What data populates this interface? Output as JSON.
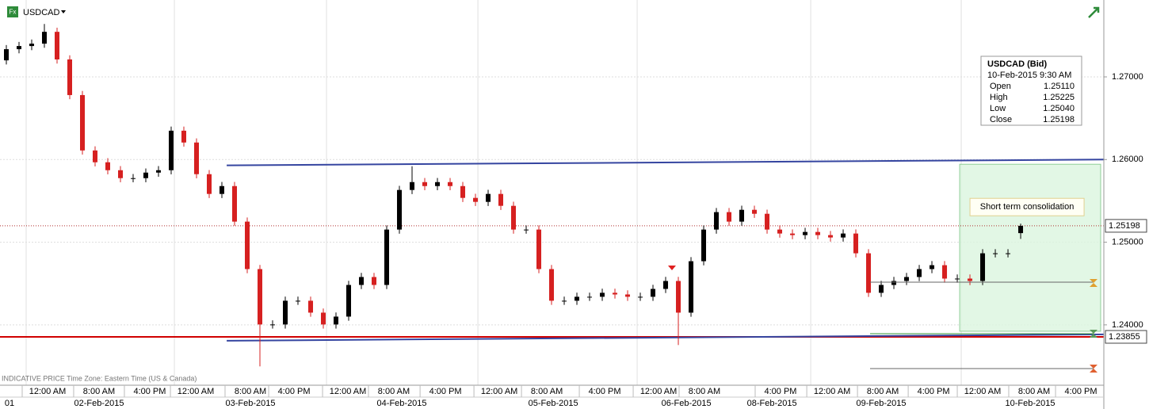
{
  "chart_data": {
    "type": "candlestick",
    "symbol": "USDCAD",
    "footer": "INDICATIVE PRICE   Time Zone: Eastern Time (US & Canada)",
    "xlim": [
      -0.5,
      86.56
    ],
    "ylim": [
      1.2327,
      1.2793
    ],
    "yticks": [
      {
        "value": 1.24,
        "label": "1.24000"
      },
      {
        "value": 1.25,
        "label": "1.25000"
      },
      {
        "value": 1.26,
        "label": "1.26000"
      },
      {
        "value": 1.27,
        "label": "1.27000"
      }
    ],
    "xticks": [
      {
        "value": 3.25,
        "label": "12:00 AM"
      },
      {
        "value": 7.31,
        "label": "8:00 AM"
      },
      {
        "value": 11.31,
        "label": "4:00 PM"
      },
      {
        "value": 14.94,
        "label": "12:00 AM"
      },
      {
        "value": 19.25,
        "label": "8:00 AM"
      },
      {
        "value": 22.69,
        "label": "4:00 PM"
      },
      {
        "value": 26.94,
        "label": "12:00 AM"
      },
      {
        "value": 30.56,
        "label": "8:00 AM"
      },
      {
        "value": 34.63,
        "label": "4:00 PM"
      },
      {
        "value": 38.88,
        "label": "12:00 AM"
      },
      {
        "value": 42.63,
        "label": "8:00 AM"
      },
      {
        "value": 47.19,
        "label": "4:00 PM"
      },
      {
        "value": 51.44,
        "label": "12:00 AM"
      },
      {
        "value": 55.06,
        "label": "8:00 AM"
      },
      {
        "value": 61.06,
        "label": "4:00 PM"
      },
      {
        "value": 65.13,
        "label": "12:00 AM"
      },
      {
        "value": 69.13,
        "label": "8:00 AM"
      },
      {
        "value": 73.13,
        "label": "4:00 PM"
      },
      {
        "value": 77.0,
        "label": "12:00 AM"
      },
      {
        "value": 81.06,
        "label": "8:00 AM"
      },
      {
        "value": 84.75,
        "label": "4:00 PM"
      }
    ],
    "date_ticks": [
      {
        "value": 0.25,
        "label": "01"
      },
      {
        "value": 7.31,
        "label": "02-Feb-2015"
      },
      {
        "value": 19.25,
        "label": "03-Feb-2015"
      },
      {
        "value": 31.19,
        "label": "04-Feb-2015"
      },
      {
        "value": 43.13,
        "label": "05-Feb-2015"
      },
      {
        "value": 53.63,
        "label": "06-Feb-2015"
      },
      {
        "value": 60.38,
        "label": "08-Feb-2015"
      },
      {
        "value": 69.0,
        "label": "09-Feb-2015"
      },
      {
        "value": 80.75,
        "label": "10-Feb-2015"
      }
    ],
    "up_color": "#000000",
    "down_color": "#d62020",
    "grid": true,
    "open": [
      1.272,
      1.27335,
      1.27373,
      1.27402,
      1.27545,
      1.27211,
      1.2678,
      1.2611,
      1.25967,
      1.25871,
      1.25775,
      1.25775,
      1.25842,
      1.25871,
      1.26349,
      1.26206,
      1.25823,
      1.25584,
      1.25679,
      1.25249,
      1.24675,
      1.24005,
      1.24005,
      1.24292,
      1.24292,
      1.24148,
      1.24005,
      1.241,
      1.24483,
      1.24579,
      1.24483,
      1.25153,
      1.25632,
      1.25727,
      1.25679,
      1.25727,
      1.25679,
      1.25536,
      1.25488,
      1.25584,
      1.2544,
      1.25153,
      1.25153,
      1.24675,
      1.24292,
      1.24292,
      1.2434,
      1.2434,
      1.24388,
      1.24368,
      1.2434,
      1.2434,
      1.24435,
      1.24531,
      1.24148,
      1.2477,
      1.25153,
      1.25364,
      1.25249,
      1.25392,
      1.25344,
      1.25153,
      1.25105,
      1.25086,
      1.25124,
      1.25086,
      1.25057,
      1.25105,
      1.24866,
      1.24388,
      1.24483,
      1.24531,
      1.24579,
      1.24675,
      1.24722,
      1.2456,
      1.2456,
      1.24531,
      1.24866,
      1.24866,
      1.2511
    ],
    "high": [
      1.27385,
      1.27423,
      1.27452,
      1.2764,
      1.27595,
      1.27261,
      1.2683,
      1.2616,
      1.26017,
      1.25921,
      1.25825,
      1.25892,
      1.25921,
      1.26399,
      1.26399,
      1.26256,
      1.25873,
      1.25729,
      1.25729,
      1.25299,
      1.24725,
      1.24055,
      1.24342,
      1.24342,
      1.24342,
      1.24198,
      1.2415,
      1.24533,
      1.24629,
      1.24629,
      1.25203,
      1.25682,
      1.25919,
      1.25777,
      1.25777,
      1.25777,
      1.25729,
      1.25586,
      1.25634,
      1.25634,
      1.2549,
      1.25203,
      1.25203,
      1.24725,
      1.24342,
      1.2439,
      1.2439,
      1.24438,
      1.24438,
      1.24418,
      1.2439,
      1.24485,
      1.24581,
      1.24581,
      1.2482,
      1.25203,
      1.25414,
      1.25414,
      1.25442,
      1.25442,
      1.25394,
      1.25203,
      1.25155,
      1.25174,
      1.25174,
      1.25136,
      1.25155,
      1.25155,
      1.24916,
      1.24533,
      1.24581,
      1.24629,
      1.24725,
      1.24772,
      1.24772,
      1.2461,
      1.2461,
      1.24916,
      1.24916,
      1.24916,
      1.25225
    ],
    "low": [
      1.2715,
      1.27285,
      1.27323,
      1.27352,
      1.27161,
      1.2673,
      1.2606,
      1.25917,
      1.25821,
      1.25725,
      1.25725,
      1.25725,
      1.25792,
      1.25821,
      1.26156,
      1.25773,
      1.25534,
      1.25534,
      1.25199,
      1.24625,
      1.23498,
      1.23955,
      1.23955,
      1.24242,
      1.24098,
      1.23955,
      1.23955,
      1.2405,
      1.24433,
      1.24433,
      1.24433,
      1.25103,
      1.25582,
      1.25629,
      1.25629,
      1.25629,
      1.25486,
      1.25438,
      1.25438,
      1.2539,
      1.25103,
      1.25103,
      1.24625,
      1.24242,
      1.24242,
      1.24242,
      1.2429,
      1.2429,
      1.24318,
      1.2429,
      1.2429,
      1.2429,
      1.24385,
      1.23756,
      1.24098,
      1.2472,
      1.25103,
      1.25199,
      1.25199,
      1.25294,
      1.25103,
      1.25055,
      1.25036,
      1.25036,
      1.25036,
      1.25007,
      1.25007,
      1.24816,
      1.24338,
      1.24338,
      1.24433,
      1.24481,
      1.24529,
      1.24625,
      1.2451,
      1.2451,
      1.24481,
      1.24481,
      1.24816,
      1.24816,
      1.2504
    ],
    "close": [
      1.27335,
      1.27373,
      1.27402,
      1.27545,
      1.27211,
      1.2678,
      1.2611,
      1.25967,
      1.25871,
      1.25775,
      1.25775,
      1.25842,
      1.25871,
      1.26349,
      1.26206,
      1.25823,
      1.25584,
      1.25679,
      1.25249,
      1.24675,
      1.24005,
      1.24005,
      1.24292,
      1.24292,
      1.24148,
      1.24005,
      1.241,
      1.24483,
      1.24579,
      1.24483,
      1.25153,
      1.25632,
      1.25727,
      1.25679,
      1.25727,
      1.25679,
      1.25536,
      1.25488,
      1.25584,
      1.2544,
      1.25153,
      1.25153,
      1.24675,
      1.24292,
      1.24292,
      1.2434,
      1.2434,
      1.24388,
      1.24368,
      1.2434,
      1.2434,
      1.24435,
      1.24531,
      1.24148,
      1.2477,
      1.25153,
      1.25364,
      1.25249,
      1.25392,
      1.25344,
      1.25153,
      1.25105,
      1.25086,
      1.25124,
      1.25086,
      1.25057,
      1.25105,
      1.24866,
      1.24388,
      1.24483,
      1.24531,
      1.24579,
      1.24675,
      1.24722,
      1.2456,
      1.2456,
      1.24531,
      1.24866,
      1.24866,
      1.24866,
      1.25198
    ],
    "price_lines": [
      {
        "value": 1.25198,
        "label": "1.25198",
        "color": "#b03030",
        "style": "dotted"
      },
      {
        "value": 1.23855,
        "label": "1.23855",
        "color": "#d00000",
        "style": "solid"
      }
    ],
    "trend_lines": [
      {
        "x": [
          17.38,
          86.56
        ],
        "y": [
          1.2593,
          1.26
        ],
        "color": "#3545a0"
      },
      {
        "x": [
          17.38,
          86.56
        ],
        "y": [
          1.23808,
          1.23885
        ],
        "color": "#3545a0"
      }
    ],
    "zones": [
      {
        "x": [
          75.19,
          86.31
        ],
        "y": [
          1.25943,
          1.23923
        ],
        "color": "#dbf5de",
        "annotation": "Short term consolidation"
      }
    ],
    "info_box": {
      "title": "USDCAD (Bid)",
      "time": "10-Feb-2015 9:30 AM",
      "rows": [
        [
          "Open",
          "1.25110"
        ],
        [
          "High",
          "1.25225"
        ],
        [
          "Low",
          "1.25040"
        ],
        [
          "Close",
          "1.25198"
        ]
      ]
    }
  }
}
